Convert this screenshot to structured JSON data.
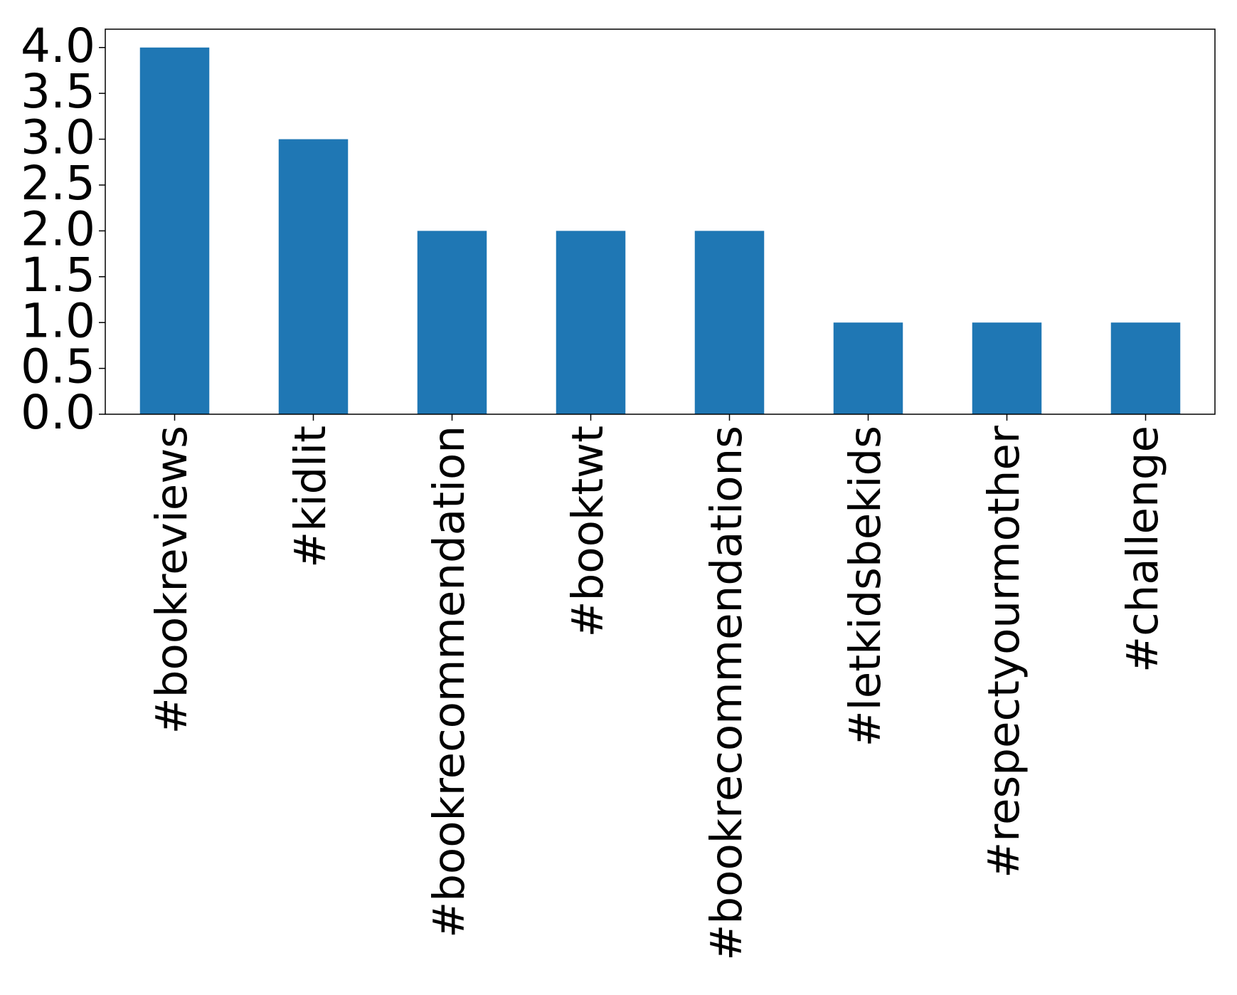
{
  "chart_data": {
    "type": "bar",
    "categories": [
      "#bookreviews",
      "#kidlit",
      "#bookrecommendation",
      "#booktwt",
      "#bookrecommendations",
      "#letkidsbekids",
      "#respectyourmother",
      "#challenge"
    ],
    "values": [
      4,
      3,
      2,
      2,
      2,
      1,
      1,
      1
    ],
    "color": "#1f77b4",
    "ylim": [
      0,
      4.2
    ],
    "yticks": [
      {
        "value": 0,
        "label": "0.0"
      },
      0.5,
      {
        "value": 1,
        "label": "1.0"
      },
      1.5,
      {
        "value": 2,
        "label": "2.0"
      },
      2.5,
      {
        "value": 3,
        "label": "3.0"
      },
      3.5,
      {
        "value": 4,
        "label": "4.0"
      }
    ],
    "grid": false
  }
}
